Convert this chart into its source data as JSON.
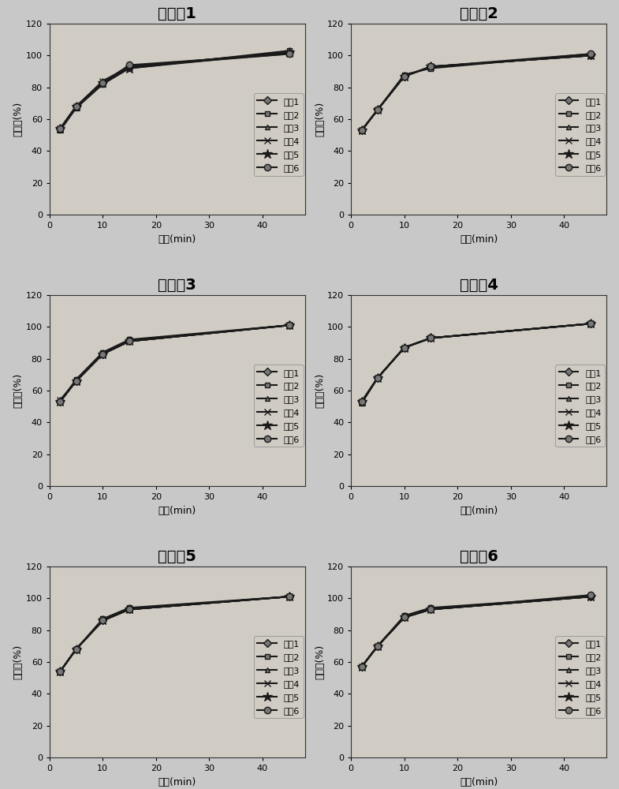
{
  "subplots": [
    {
      "title": "实施例1",
      "row": 0,
      "col": 0
    },
    {
      "title": "实施例2",
      "row": 0,
      "col": 1
    },
    {
      "title": "实施例3",
      "row": 1,
      "col": 0
    },
    {
      "title": "实施例4",
      "row": 1,
      "col": 1
    },
    {
      "title": "实施例5",
      "row": 2,
      "col": 0
    },
    {
      "title": "实施例6",
      "row": 2,
      "col": 1
    }
  ],
  "x_values": [
    2,
    5,
    10,
    15,
    45
  ],
  "series_data": {
    "实施例1": {
      "样品1": [
        54,
        68,
        83,
        93,
        102
      ],
      "样品2": [
        53,
        67,
        82,
        92,
        103
      ],
      "样品3": [
        54,
        68,
        83,
        93,
        102
      ],
      "样品4": [
        54,
        68,
        84,
        93,
        101
      ],
      "样品5": [
        54,
        68,
        83,
        92,
        102
      ],
      "样品6": [
        54,
        68,
        83,
        94,
        101
      ]
    },
    "实施例2": {
      "样品1": [
        53,
        66,
        87,
        93,
        100
      ],
      "样品2": [
        53,
        66,
        88,
        92,
        101
      ],
      "样品3": [
        53,
        66,
        87,
        93,
        100
      ],
      "样品4": [
        53,
        66,
        87,
        93,
        100
      ],
      "样品5": [
        53,
        66,
        87,
        93,
        100
      ],
      "样品6": [
        53,
        66,
        87,
        93,
        101
      ]
    },
    "实施例3": {
      "样品1": [
        53,
        66,
        83,
        91,
        101
      ],
      "样品2": [
        53,
        67,
        84,
        92,
        101
      ],
      "样品3": [
        54,
        66,
        83,
        91,
        101
      ],
      "样品4": [
        54,
        66,
        83,
        91,
        101
      ],
      "样品5": [
        53,
        66,
        83,
        91,
        101
      ],
      "样品6": [
        53,
        66,
        83,
        91,
        101
      ]
    },
    "实施例4": {
      "样品1": [
        53,
        68,
        87,
        93,
        102
      ],
      "样品2": [
        52,
        68,
        87,
        93,
        102
      ],
      "样品3": [
        53,
        68,
        87,
        93,
        102
      ],
      "样品4": [
        53,
        68,
        87,
        93,
        102
      ],
      "样品5": [
        53,
        68,
        87,
        93,
        102
      ],
      "样品6": [
        53,
        68,
        87,
        93,
        102
      ]
    },
    "实施例5": {
      "样品1": [
        54,
        68,
        86,
        93,
        101
      ],
      "样品2": [
        54,
        68,
        87,
        94,
        101
      ],
      "样品3": [
        54,
        68,
        86,
        93,
        101
      ],
      "样品4": [
        54,
        68,
        86,
        93,
        101
      ],
      "样品5": [
        54,
        68,
        86,
        93,
        101
      ],
      "样品6": [
        54,
        68,
        86,
        93,
        101
      ]
    },
    "实施例6": {
      "样品1": [
        57,
        70,
        88,
        93,
        101
      ],
      "样品2": [
        57,
        70,
        89,
        94,
        101
      ],
      "样品3": [
        57,
        70,
        88,
        93,
        101
      ],
      "样品4": [
        57,
        70,
        88,
        93,
        101
      ],
      "样品5": [
        57,
        70,
        88,
        93,
        101
      ],
      "样品6": [
        57,
        70,
        88,
        93,
        102
      ]
    }
  },
  "series_names": [
    "样品1",
    "样品2",
    "样品3",
    "样品4",
    "样品5",
    "样品6"
  ],
  "markers": [
    "D",
    "s",
    "^",
    "x",
    "*",
    "o"
  ],
  "marker_sizes": [
    5,
    5,
    5,
    6,
    9,
    6
  ],
  "line_color": "#1a1a1a",
  "marker_face_colors": [
    "#777777",
    "#777777",
    "#777777",
    "#1a1a1a",
    "#1a1a1a",
    "#777777"
  ],
  "xlabel": "时间(min)",
  "ylabel": "释放度(%)",
  "xlim": [
    0,
    48
  ],
  "ylim": [
    0,
    120
  ],
  "yticks": [
    0,
    20,
    40,
    60,
    80,
    100,
    120
  ],
  "xticks": [
    0,
    10,
    20,
    30,
    40
  ],
  "bg_color": "#c8c8c8",
  "plot_bg_color": "#d0ccc4",
  "title_fontsize": 14,
  "label_fontsize": 9,
  "tick_fontsize": 8,
  "legend_fontsize": 8,
  "hspace": 0.42,
  "wspace": 0.18
}
